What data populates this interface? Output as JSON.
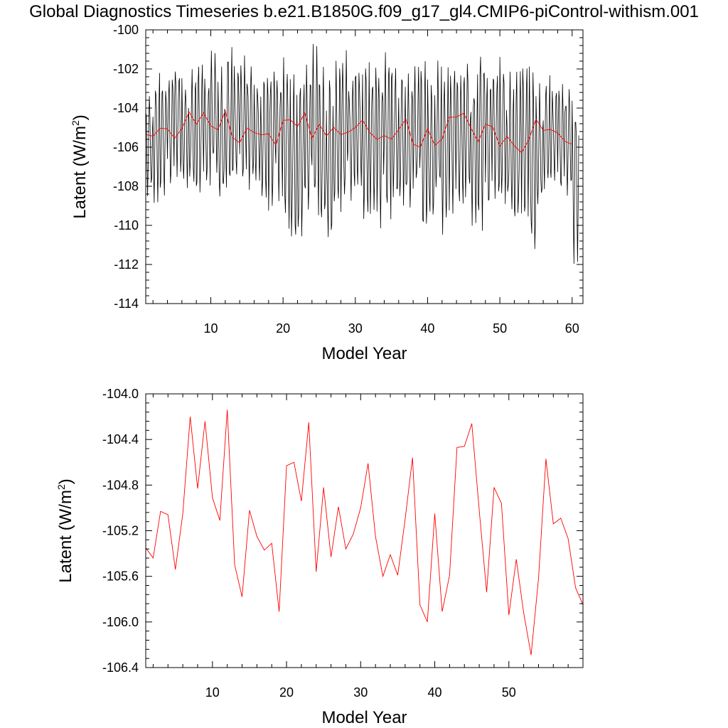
{
  "page": {
    "title": "Global Diagnostics Timeseries b.e21.B1850G.f09_g17_gl4.CMIP6-piControl-withism.001"
  },
  "colors": {
    "monthly": "#000000",
    "annual": "#ff0000",
    "axis": "#000000"
  },
  "chart_data": [
    {
      "type": "line",
      "xlabel": "Model Year",
      "ylabel_main": "Latent (W/m",
      "ylabel_sup": "2",
      "ylabel_close": ")",
      "xlim": [
        1,
        61.5
      ],
      "ylim": [
        -114,
        -100
      ],
      "xticks": [
        10,
        20,
        30,
        40,
        50,
        60
      ],
      "yticks": [
        -114,
        -112,
        -110,
        -108,
        -106,
        -104,
        -102,
        -100
      ],
      "ytick_labels": [
        "-114",
        "-112",
        "-110",
        "-108",
        "-106",
        "-104",
        "-102",
        "-100"
      ],
      "series": [
        {
          "style": "monthly",
          "x_start": 1,
          "x_step": 0.0833333,
          "monthly_low": [
            -108.6,
            -109.0,
            -108.7,
            -108.3,
            -107.6,
            -108.1,
            -108.3,
            -108.9,
            -108.2,
            -107.7,
            -109.3,
            -108.5,
            -108.0,
            -108.4,
            -108.3,
            -107.9,
            -109.0,
            -109.4,
            -108.8,
            -110.2,
            -111.4,
            -111.0,
            -109.8,
            -110.0,
            -110.6,
            -111.4,
            -109.7,
            -109.4,
            -108.9,
            -108.3,
            -110.1,
            -109.5,
            -110.2,
            -109.8,
            -109.0,
            -109.2,
            -109.6,
            -108.8,
            -111.1,
            -110.2,
            -108.8,
            -110.6,
            -109.7,
            -109.4,
            -108.8,
            -110.1,
            -110.4,
            -109.6,
            -108.9,
            -109.0,
            -109.7,
            -110.5,
            -110.3,
            -112.0,
            -109.6,
            -108.3,
            -108.0,
            -108.7,
            -108.6,
            -112.1
          ],
          "monthly_high": [
            -103.0,
            -101.8,
            -102.3,
            -101.9,
            -101.5,
            -102.4,
            -101.8,
            -101.3,
            -102.3,
            -101.0,
            -101.8,
            -100.7,
            -101.6,
            -101.2,
            -101.4,
            -102.2,
            -101.8,
            -101.5,
            -101.9,
            -101.2,
            -101.8,
            -102.0,
            -101.6,
            -100.6,
            -101.7,
            -101.7,
            -101.4,
            -101.0,
            -102.1,
            -101.5,
            -101.1,
            -101.4,
            -101.6,
            -100.8,
            -101.4,
            -101.5,
            -102.1,
            -101.7,
            -101.2,
            -102.3,
            -101.5,
            -101.9,
            -101.4,
            -101.8,
            -101.1,
            -101.8,
            -100.3,
            -102.0,
            -101.6,
            -101.3,
            -102.0,
            -101.8,
            -101.4,
            -101.7,
            -102.7,
            -102.3,
            -102.7,
            -102.5,
            -102.6,
            -102.8
          ]
        },
        {
          "style": "annual",
          "x": [
            1,
            2,
            3,
            4,
            5,
            6,
            7,
            8,
            9,
            10,
            11,
            12,
            13,
            14,
            15,
            16,
            17,
            18,
            19,
            20,
            21,
            22,
            23,
            24,
            25,
            26,
            27,
            28,
            29,
            30,
            31,
            32,
            33,
            34,
            35,
            36,
            37,
            38,
            39,
            40,
            41,
            42,
            43,
            44,
            45,
            46,
            47,
            48,
            49,
            50,
            51,
            52,
            53,
            54,
            55,
            56,
            57,
            58,
            59,
            60
          ],
          "values": [
            -105.35,
            -105.44,
            -105.03,
            -105.06,
            -105.54,
            -105.05,
            -104.2,
            -104.83,
            -104.24,
            -104.91,
            -105.11,
            -104.14,
            -105.5,
            -105.78,
            -105.02,
            -105.25,
            -105.37,
            -105.31,
            -105.91,
            -104.63,
            -104.6,
            -104.94,
            -104.25,
            -105.56,
            -104.82,
            -105.43,
            -104.99,
            -105.36,
            -105.23,
            -105.0,
            -104.61,
            -105.25,
            -105.6,
            -105.41,
            -105.59,
            -105.1,
            -104.56,
            -105.85,
            -106.0,
            -105.05,
            -105.91,
            -105.59,
            -104.47,
            -104.46,
            -104.26,
            -105.02,
            -105.74,
            -104.82,
            -104.96,
            -105.94,
            -105.45,
            -105.92,
            -106.29,
            -105.62,
            -104.57,
            -105.14,
            -105.09,
            -105.27,
            -105.7,
            -105.85
          ]
        }
      ]
    },
    {
      "type": "line",
      "xlabel": "Model Year",
      "ylabel_main": "Latent (W/m",
      "ylabel_sup": "2",
      "ylabel_close": ")",
      "xlim": [
        1,
        60
      ],
      "ylim": [
        -106.4,
        -104.0
      ],
      "xticks": [
        10,
        20,
        30,
        40,
        50
      ],
      "yticks": [
        -106.4,
        -106.0,
        -105.6,
        -105.2,
        -104.8,
        -104.4,
        -104.0
      ],
      "ytick_labels": [
        "-106.4",
        "-106.0",
        "-105.6",
        "-105.2",
        "-104.8",
        "-104.4",
        "-104.0"
      ],
      "series": [
        {
          "style": "annual",
          "x": [
            1,
            2,
            3,
            4,
            5,
            6,
            7,
            8,
            9,
            10,
            11,
            12,
            13,
            14,
            15,
            16,
            17,
            18,
            19,
            20,
            21,
            22,
            23,
            24,
            25,
            26,
            27,
            28,
            29,
            30,
            31,
            32,
            33,
            34,
            35,
            36,
            37,
            38,
            39,
            40,
            41,
            42,
            43,
            44,
            45,
            46,
            47,
            48,
            49,
            50,
            51,
            52,
            53,
            54,
            55,
            56,
            57,
            58,
            59,
            60
          ],
          "values": [
            -105.35,
            -105.44,
            -105.03,
            -105.06,
            -105.54,
            -105.05,
            -104.2,
            -104.83,
            -104.24,
            -104.91,
            -105.11,
            -104.14,
            -105.5,
            -105.78,
            -105.02,
            -105.25,
            -105.37,
            -105.31,
            -105.91,
            -104.63,
            -104.6,
            -104.94,
            -104.25,
            -105.56,
            -104.82,
            -105.43,
            -104.99,
            -105.36,
            -105.23,
            -105.0,
            -104.61,
            -105.25,
            -105.6,
            -105.41,
            -105.59,
            -105.1,
            -104.56,
            -105.85,
            -106.0,
            -105.05,
            -105.91,
            -105.59,
            -104.47,
            -104.46,
            -104.26,
            -105.02,
            -105.74,
            -104.82,
            -104.96,
            -105.94,
            -105.45,
            -105.92,
            -106.29,
            -105.62,
            -104.57,
            -105.14,
            -105.09,
            -105.27,
            -105.7,
            -105.85
          ]
        }
      ]
    }
  ]
}
